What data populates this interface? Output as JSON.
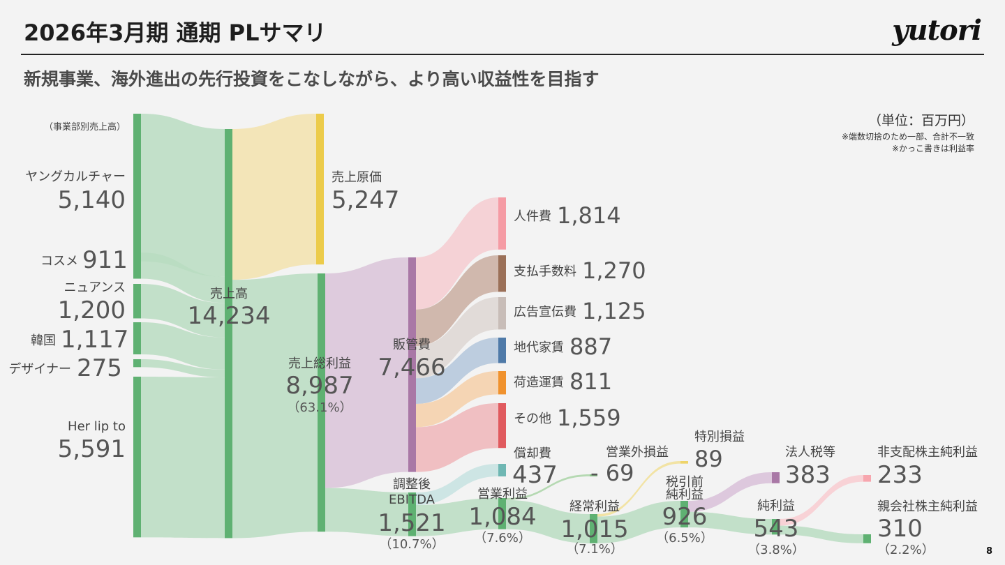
{
  "header": {
    "title": "2026年3月期 通期 PLサマリ",
    "logo": "yutori",
    "subtitle": "新規事業、海外進出の先行投資をこなしながら、より高い収益性を目指す"
  },
  "notes": {
    "unit": "（単位：百万円）",
    "line1": "※端数切捨のため一部、合計不一致",
    "line2": "※かっこ書きは利益率"
  },
  "page_number": "8",
  "colors": {
    "green": "#5fb172",
    "green_flow": "#b8dcc1",
    "cost_of_sales": "#eccb4a",
    "cost_flow": "#f2e2ad",
    "sga": "#a978a6",
    "sga_flow": "#d9c3d8",
    "personnel": "#f59ba4",
    "fees": "#9b7058",
    "advertising": "#c8bdb8",
    "rent": "#4f7aa8",
    "logistics": "#f0922e",
    "other": "#e05a5e",
    "depreciation": "#6fb7b3",
    "non_operating": "#8cc38a",
    "extraordinary": "#eed46a",
    "tax": "#a978a6",
    "minority": "#f7a6ae"
  },
  "chart_data": {
    "type": "sankey",
    "nodes": [
      {
        "id": "segment_header",
        "label": "（事業部別売上高）",
        "value_text": ""
      },
      {
        "id": "young_culture",
        "label": "ヤングカルチャー",
        "value": 5140,
        "value_text": "5,140"
      },
      {
        "id": "cosme",
        "label": "コスメ",
        "value": 911,
        "value_text": "911"
      },
      {
        "id": "nuance",
        "label": "ニュアンス",
        "value": 1200,
        "value_text": "1,200"
      },
      {
        "id": "korea",
        "label": "韓国",
        "value": 1117,
        "value_text": "1,117"
      },
      {
        "id": "designer",
        "label": "デザイナー",
        "value": 275,
        "value_text": "275"
      },
      {
        "id": "herlipto",
        "label": "Her lip to",
        "value": 5591,
        "value_text": "5,591"
      },
      {
        "id": "sales",
        "label": "売上高",
        "value": 14234,
        "value_text": "14,234"
      },
      {
        "id": "cogs",
        "label": "売上原価",
        "value": 5247,
        "value_text": "5,247"
      },
      {
        "id": "gross_profit",
        "label": "売上総利益",
        "value": 8987,
        "value_text": "8,987",
        "margin": "（63.1%）"
      },
      {
        "id": "sga",
        "label": "販管費",
        "value": 7466,
        "value_text": "7,466"
      },
      {
        "id": "personnel",
        "label": "人件費",
        "value": 1814,
        "value_text": "1,814"
      },
      {
        "id": "fees",
        "label": "支払手数料",
        "value": 1270,
        "value_text": "1,270"
      },
      {
        "id": "advertising",
        "label": "広告宣伝費",
        "value": 1125,
        "value_text": "1,125"
      },
      {
        "id": "rent",
        "label": "地代家賃",
        "value": 887,
        "value_text": "887"
      },
      {
        "id": "logistics",
        "label": "荷造運賃",
        "value": 811,
        "value_text": "811"
      },
      {
        "id": "other",
        "label": "その他",
        "value": 1559,
        "value_text": "1,559"
      },
      {
        "id": "ebitda",
        "label": "調整後\nEBITDA",
        "value": 1521,
        "value_text": "1,521",
        "margin": "（10.7%）"
      },
      {
        "id": "depreciation",
        "label": "償却費",
        "value": 437,
        "value_text": "437"
      },
      {
        "id": "operating_profit",
        "label": "営業利益",
        "value": 1084,
        "value_text": "1,084",
        "margin": "（7.6%）"
      },
      {
        "id": "non_operating",
        "label": "営業外損益",
        "value": 69,
        "value_text": "- 69"
      },
      {
        "id": "ordinary_profit",
        "label": "経常利益",
        "value": 1015,
        "value_text": "1,015",
        "margin": "（7.1%）"
      },
      {
        "id": "extraordinary",
        "label": "特別損益",
        "value": 89,
        "value_text": "89"
      },
      {
        "id": "pretax_profit",
        "label": "税引前\n純利益",
        "value": 926,
        "value_text": "926",
        "margin": "（6.5%）"
      },
      {
        "id": "tax",
        "label": "法人税等",
        "value": 383,
        "value_text": "383"
      },
      {
        "id": "net_income",
        "label": "純利益",
        "value": 543,
        "value_text": "543",
        "margin": "（3.8%）"
      },
      {
        "id": "minority",
        "label": "非支配株主純利益",
        "value": 233,
        "value_text": "233"
      },
      {
        "id": "parent_net_income",
        "label": "親会社株主純利益",
        "value": 310,
        "value_text": "310",
        "margin": "（2.2%）"
      }
    ],
    "links": [
      {
        "source": "young_culture",
        "target": "sales",
        "value": 5140
      },
      {
        "source": "cosme",
        "target": "sales",
        "value": 911
      },
      {
        "source": "nuance",
        "target": "sales",
        "value": 1200
      },
      {
        "source": "korea",
        "target": "sales",
        "value": 1117
      },
      {
        "source": "designer",
        "target": "sales",
        "value": 275
      },
      {
        "source": "herlipto",
        "target": "sales",
        "value": 5591
      },
      {
        "source": "sales",
        "target": "cogs",
        "value": 5247
      },
      {
        "source": "sales",
        "target": "gross_profit",
        "value": 8987
      },
      {
        "source": "gross_profit",
        "target": "sga",
        "value": 7466
      },
      {
        "source": "gross_profit",
        "target": "ebitda",
        "value": 1521
      },
      {
        "source": "sga",
        "target": "personnel",
        "value": 1814
      },
      {
        "source": "sga",
        "target": "fees",
        "value": 1270
      },
      {
        "source": "sga",
        "target": "advertising",
        "value": 1125
      },
      {
        "source": "sga",
        "target": "rent",
        "value": 887
      },
      {
        "source": "sga",
        "target": "logistics",
        "value": 811
      },
      {
        "source": "sga",
        "target": "other",
        "value": 1559
      },
      {
        "source": "ebitda",
        "target": "depreciation",
        "value": 437
      },
      {
        "source": "ebitda",
        "target": "operating_profit",
        "value": 1084
      },
      {
        "source": "operating_profit",
        "target": "non_operating",
        "value": 69
      },
      {
        "source": "operating_profit",
        "target": "ordinary_profit",
        "value": 1015
      },
      {
        "source": "ordinary_profit",
        "target": "extraordinary",
        "value": 89
      },
      {
        "source": "ordinary_profit",
        "target": "pretax_profit",
        "value": 926
      },
      {
        "source": "pretax_profit",
        "target": "tax",
        "value": 383
      },
      {
        "source": "pretax_profit",
        "target": "net_income",
        "value": 543
      },
      {
        "source": "net_income",
        "target": "minority",
        "value": 233
      },
      {
        "source": "net_income",
        "target": "parent_net_income",
        "value": 310
      }
    ]
  }
}
